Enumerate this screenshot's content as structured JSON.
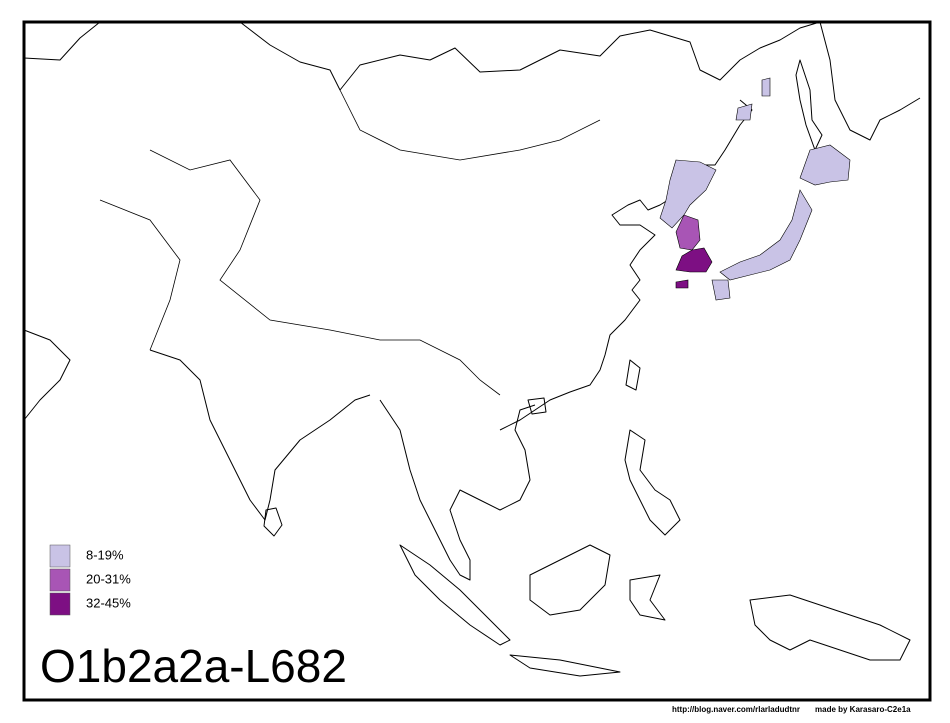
{
  "title": "O1b2a2a-L682",
  "legend": {
    "items": [
      {
        "label": "8-19%",
        "color": "#c9c3e6"
      },
      {
        "label": "20-31%",
        "color": "#a855b5"
      },
      {
        "label": "32-45%",
        "color": "#7d0f83"
      }
    ]
  },
  "credits": {
    "url": "http://blog.naver.com/rlarladudtnr",
    "author": "made by Karasaro-C2e1a"
  }
}
